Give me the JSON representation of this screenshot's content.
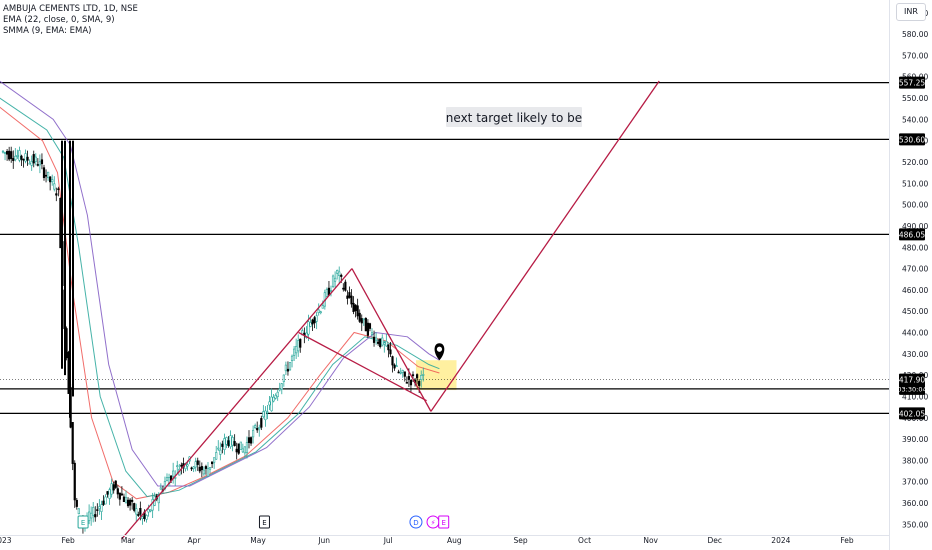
{
  "legend": {
    "symbol": "AMBUJA CEMENTS LTD, 1D, NSE",
    "ema": "EMA (22, close, 0, SMA, 9)",
    "smma": "SMMA (9, EMA: EMA)"
  },
  "currency": "INR",
  "annotation": "next target likely to be",
  "colors": {
    "up": "#26a69a",
    "down": "#000000",
    "trend": "#b71c45",
    "highlight": "#ffeb80",
    "ma1": "#ef5350",
    "ma2": "#26a69a",
    "ma3": "#7e57c2"
  },
  "chart_data": {
    "type": "candlestick",
    "y_axis": {
      "min": 345,
      "max": 596,
      "ticks": [
        350,
        360,
        370,
        380,
        390,
        400,
        410,
        420,
        430,
        440,
        450,
        460,
        470,
        480,
        490,
        500,
        510,
        520,
        530,
        540,
        550,
        560,
        570,
        580,
        590
      ],
      "tick_labels": [
        "350.00",
        "360.00",
        "370.00",
        "380.00",
        "390.00",
        "400.00",
        "410.00",
        "420.00",
        "430.00",
        "440.00",
        "450.00",
        "460.00",
        "470.00",
        "480.00",
        "490.00",
        "500.00",
        "510.00",
        "520.00",
        "530.00",
        "540.00",
        "550.00",
        "560.00",
        "570.00",
        "580.00",
        "590.00"
      ]
    },
    "x_axis": {
      "labels": [
        "2023",
        "Feb",
        "Mar",
        "Apr",
        "May",
        "Jun",
        "Jul",
        "Aug",
        "Sep",
        "Oct",
        "Nov",
        "Dec",
        "2024",
        "Feb"
      ],
      "label_dates": [
        "2023-01-01",
        "2023-02-01",
        "2023-03-01",
        "2023-04-01",
        "2023-05-01",
        "2023-06-01",
        "2023-07-01",
        "2023-08-01",
        "2023-09-01",
        "2023-10-01",
        "2023-11-01",
        "2023-12-01",
        "2024-01-01",
        "2024-02-01"
      ]
    },
    "horizontal_levels": [
      {
        "value": 557.25,
        "label": "557.25"
      },
      {
        "value": 530.6,
        "label": "530.60"
      },
      {
        "value": 486.05,
        "label": "486.05"
      },
      {
        "value": 413.55,
        "label": "413.55"
      },
      {
        "value": 402.05,
        "label": "402.05"
      }
    ],
    "last_price": {
      "value": 417.9,
      "label": "417.90",
      "countdown": "03:30:04"
    },
    "trendlines": [
      {
        "from": [
          "2023-02-26",
          343
        ],
        "to": [
          "2023-06-14",
          470
        ]
      },
      {
        "from": [
          "2023-06-14",
          470
        ],
        "to": [
          "2023-07-21",
          403
        ]
      },
      {
        "from": [
          "2023-05-20",
          440
        ],
        "to": [
          "2023-07-19",
          408
        ]
      },
      {
        "from": [
          "2023-07-21",
          403
        ],
        "to": [
          "2023-11-05",
          558
        ]
      }
    ],
    "highlight_box": {
      "from": "2023-07-14",
      "to": "2023-08-02",
      "low": 413,
      "high": 427
    },
    "events": [
      {
        "date": "2023-02-08",
        "symbol": "E"
      },
      {
        "date": "2023-05-04",
        "symbol": "E"
      },
      {
        "date": "2023-07-14",
        "symbol": "D"
      },
      {
        "date": "2023-07-22",
        "symbol": "⚡"
      },
      {
        "date": "2023-07-27",
        "symbol": "E"
      }
    ],
    "marker": {
      "date": "2023-07-25",
      "value": 427
    },
    "moving_averages": [
      {
        "color": "ma1",
        "points": [
          [
            "2022-12-28",
            548
          ],
          [
            "2023-01-20",
            530
          ],
          [
            "2023-01-27",
            515
          ],
          [
            "2023-02-03",
            460
          ],
          [
            "2023-02-12",
            400
          ],
          [
            "2023-02-22",
            370
          ],
          [
            "2023-03-05",
            362
          ],
          [
            "2023-03-20",
            365
          ],
          [
            "2023-04-05",
            372
          ],
          [
            "2023-04-25",
            382
          ],
          [
            "2023-05-15",
            400
          ],
          [
            "2023-05-30",
            420
          ],
          [
            "2023-06-15",
            440
          ],
          [
            "2023-06-30",
            436
          ],
          [
            "2023-07-15",
            424
          ],
          [
            "2023-07-25",
            421
          ]
        ]
      },
      {
        "color": "ma2",
        "points": [
          [
            "2022-12-28",
            552
          ],
          [
            "2023-01-22",
            535
          ],
          [
            "2023-01-30",
            522
          ],
          [
            "2023-02-06",
            480
          ],
          [
            "2023-02-16",
            410
          ],
          [
            "2023-02-28",
            375
          ],
          [
            "2023-03-10",
            363
          ],
          [
            "2023-03-25",
            366
          ],
          [
            "2023-04-10",
            374
          ],
          [
            "2023-04-30",
            384
          ],
          [
            "2023-05-20",
            402
          ],
          [
            "2023-06-05",
            425
          ],
          [
            "2023-06-20",
            438
          ],
          [
            "2023-07-05",
            434
          ],
          [
            "2023-07-20",
            425
          ],
          [
            "2023-07-25",
            423
          ]
        ]
      },
      {
        "color": "ma3",
        "points": [
          [
            "2022-12-28",
            560
          ],
          [
            "2023-01-25",
            540
          ],
          [
            "2023-02-02",
            528
          ],
          [
            "2023-02-10",
            495
          ],
          [
            "2023-02-20",
            425
          ],
          [
            "2023-03-03",
            385
          ],
          [
            "2023-03-15",
            368
          ],
          [
            "2023-03-30",
            368
          ],
          [
            "2023-04-15",
            376
          ],
          [
            "2023-05-05",
            386
          ],
          [
            "2023-05-25",
            405
          ],
          [
            "2023-06-10",
            428
          ],
          [
            "2023-06-25",
            440
          ],
          [
            "2023-07-10",
            438
          ],
          [
            "2023-07-20",
            430
          ],
          [
            "2023-07-25",
            427
          ]
        ]
      }
    ]
  }
}
